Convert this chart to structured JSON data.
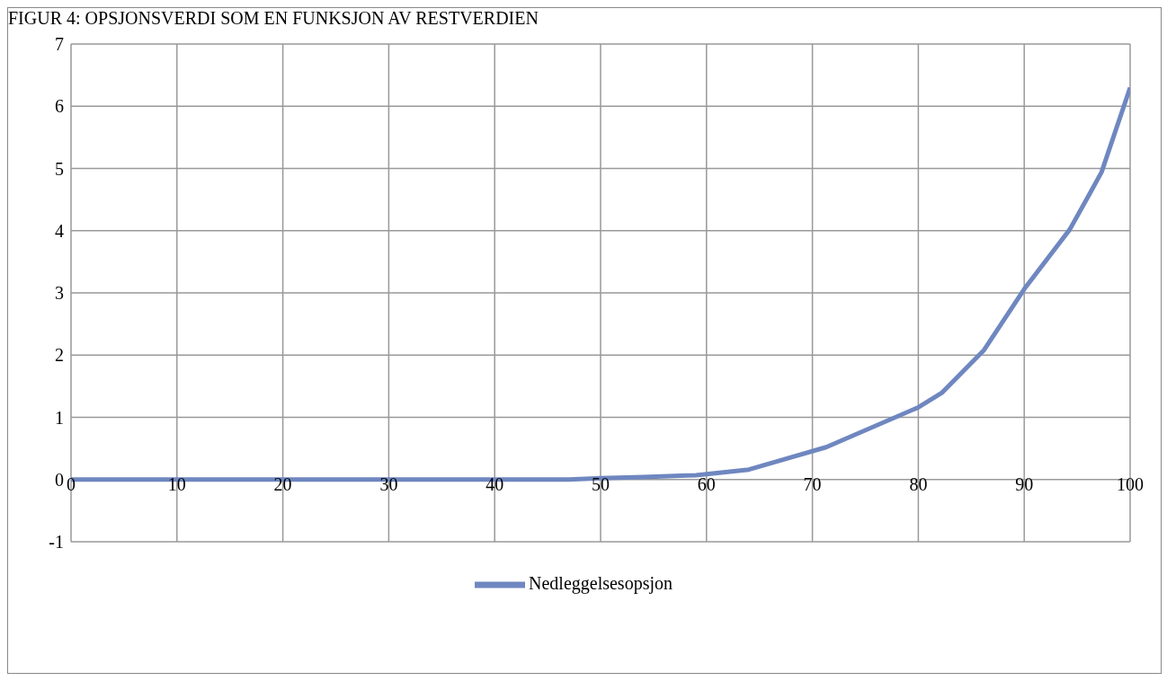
{
  "chart_data": {
    "type": "line",
    "title": "FIGUR 4: OPSJONSVERDI SOM EN FUNKSJON AV RESTVERDIEN",
    "x": [
      0,
      10,
      20,
      30,
      40,
      47,
      50,
      54,
      59,
      64,
      71.3,
      80,
      82.2,
      86.2,
      90,
      94.3,
      96.2,
      97.3,
      100
    ],
    "series": [
      {
        "name": "Nedleggelsesopsjon",
        "color": "#6f87c0",
        "values": [
          0,
          0,
          0,
          0,
          0,
          0,
          0.02,
          0.04,
          0.07,
          0.16,
          0.52,
          1.16,
          1.39,
          2.08,
          3.06,
          4.02,
          4.6,
          4.94,
          6.3
        ]
      }
    ],
    "xlim": [
      0,
      100
    ],
    "xticks": [
      0,
      10,
      20,
      30,
      40,
      50,
      60,
      70,
      80,
      90,
      100
    ],
    "ylim": [
      -1,
      7
    ],
    "yticks": [
      -1,
      0,
      1,
      2,
      3,
      4,
      5,
      6,
      7
    ],
    "grid": true,
    "legend": "bottom",
    "marker": "none",
    "line_style": "solid"
  }
}
